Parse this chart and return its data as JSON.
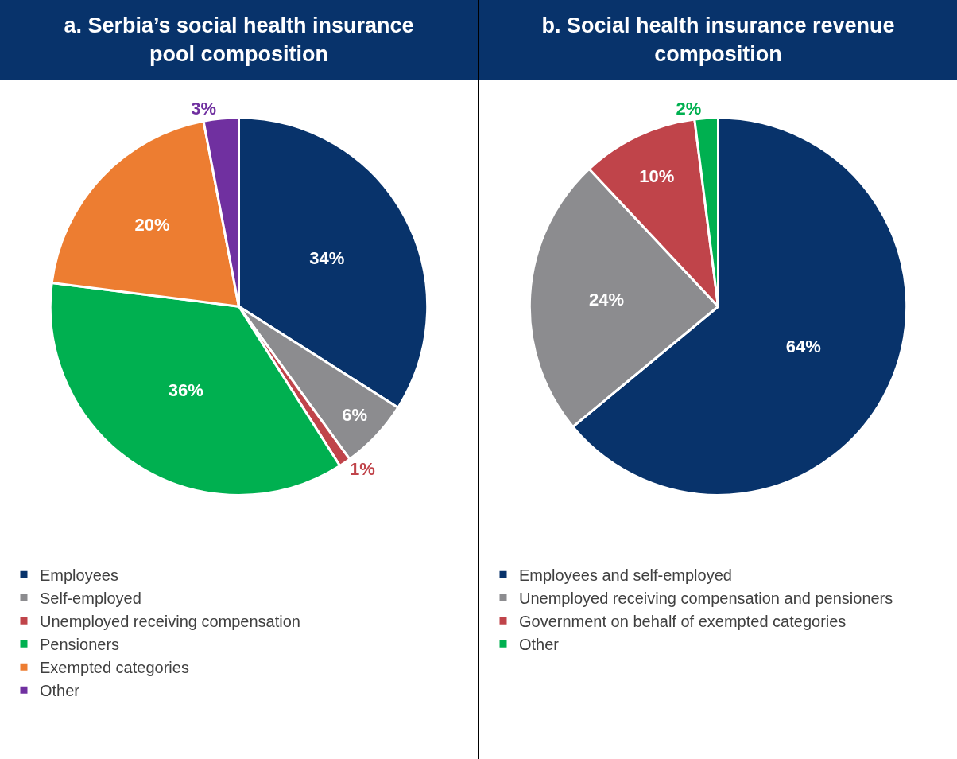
{
  "chart_data": [
    {
      "type": "pie",
      "title": "a. Serbia’s social health insurance pool composition",
      "categories": [
        "Employees",
        "Self-employed",
        "Unemployed receiving compensation",
        "Pensioners",
        "Exempted categories",
        "Other"
      ],
      "values": [
        34,
        6,
        1,
        36,
        20,
        3
      ],
      "value_labels": [
        "34%",
        "6%",
        "1%",
        "36%",
        "20%",
        "3%"
      ],
      "colors": [
        "#08336b",
        "#8c8c8f",
        "#c0444a",
        "#00b050",
        "#ed7d31",
        "#7030a0"
      ],
      "legend": "bottom"
    },
    {
      "type": "pie",
      "title": "b. Social health insurance revenue composition",
      "categories": [
        "Employees and self-employed",
        "Unemployed receiving compensation and pensioners",
        "Government on behalf of exempted categories",
        "Other"
      ],
      "values": [
        64,
        24,
        10,
        2
      ],
      "value_labels": [
        "64%",
        "24%",
        "10%",
        "2%"
      ],
      "colors": [
        "#08336b",
        "#8c8c8f",
        "#c0444a",
        "#00b050"
      ],
      "legend": "bottom"
    }
  ]
}
